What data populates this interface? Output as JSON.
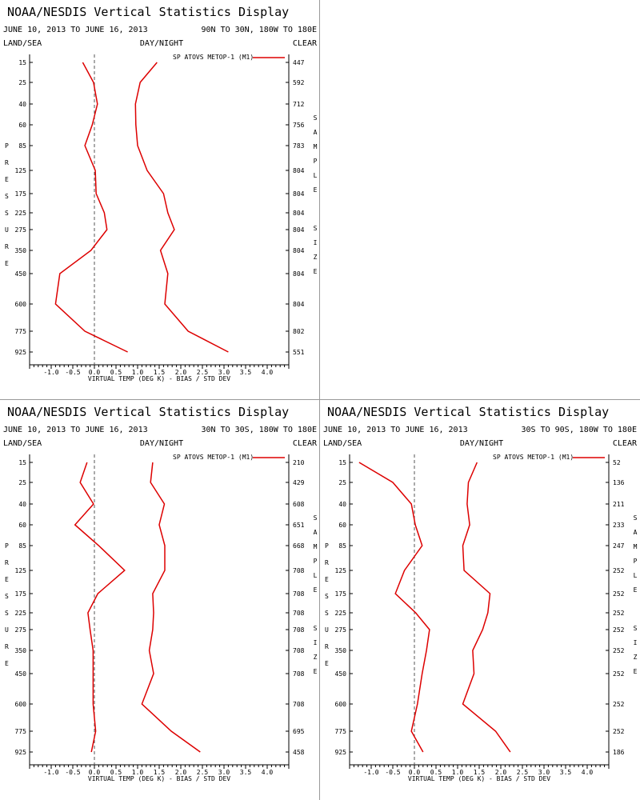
{
  "colors": {
    "series": "#dd0000",
    "zero_line": "#555555",
    "axis": "#000000",
    "divider": "#9a9a9a"
  },
  "pressure_levels": [
    15,
    25,
    40,
    60,
    85,
    125,
    175,
    225,
    275,
    350,
    450,
    600,
    775,
    925
  ],
  "x_ticks": [
    "-1.0",
    "-0.5",
    "0.0",
    "0.5",
    "1.0",
    "1.5",
    "2.0",
    "2.5",
    "3.0",
    "3.5",
    "4.0"
  ],
  "chart_data": [
    {
      "type": "line",
      "title": "NOAA/NESDIS Vertical Statistics Display",
      "date_range": "JUNE 10, 2013 TO JUNE 16, 2013",
      "region": "90N TO 30N, 180W TO 180E",
      "header_left": "LAND/SEA",
      "header_mid": "DAY/NIGHT",
      "header_right": "CLEAR",
      "left_axis_label": "PRESSURE",
      "right_axis_label": "SAMPLE SIZE",
      "xlabel": "VIRTUAL TEMP (DEG K) - BIAS / STD DEV",
      "xlim": [
        -1.5,
        4.5
      ],
      "legend": "SP ATOVS METOP-1 (M1)",
      "sample_size": [
        "447",
        "592",
        "712",
        "756",
        "783",
        "804",
        "804",
        "804",
        "804",
        "804",
        "804",
        "804",
        "802",
        "551"
      ],
      "series": [
        {
          "type": "bias",
          "values": [
            -0.27,
            -0.02,
            0.07,
            -0.05,
            -0.22,
            0.02,
            0.04,
            0.23,
            0.29,
            -0.08,
            -0.8,
            -0.9,
            -0.22,
            0.77
          ]
        },
        {
          "type": "std_dev",
          "values": [
            1.45,
            1.06,
            0.95,
            0.96,
            1.0,
            1.22,
            1.6,
            1.7,
            1.85,
            1.53,
            1.7,
            1.63,
            2.17,
            3.1
          ]
        }
      ]
    },
    {
      "type": "line",
      "title": "NOAA/NESDIS Vertical Statistics Display",
      "date_range": "JUNE 10, 2013 TO JUNE 16, 2013",
      "region": "30N TO 30S, 180W TO 180E",
      "header_left": "LAND/SEA",
      "header_mid": "DAY/NIGHT",
      "header_right": "CLEAR",
      "left_axis_label": "PRESSURE",
      "right_axis_label": "SAMPLE SIZE",
      "xlabel": "VIRTUAL TEMP (DEG K) - BIAS / STD DEV",
      "xlim": [
        -1.5,
        4.5
      ],
      "legend": "SP ATOVS METOP-1 (M1)",
      "sample_size": [
        "210",
        "429",
        "608",
        "651",
        "668",
        "708",
        "708",
        "708",
        "708",
        "708",
        "708",
        "708",
        "695",
        "458"
      ],
      "series": [
        {
          "type": "bias",
          "values": [
            -0.17,
            -0.33,
            -0.02,
            -0.45,
            0.1,
            0.7,
            0.08,
            -0.15,
            -0.1,
            -0.03,
            -0.03,
            -0.03,
            0.03,
            -0.07
          ]
        },
        {
          "type": "std_dev",
          "values": [
            1.35,
            1.3,
            1.62,
            1.5,
            1.63,
            1.63,
            1.35,
            1.37,
            1.35,
            1.27,
            1.37,
            1.1,
            1.78,
            2.45
          ]
        }
      ]
    },
    {
      "type": "line",
      "title": "NOAA/NESDIS Vertical Statistics Display",
      "date_range": "JUNE 10, 2013 TO JUNE 16, 2013",
      "region": "30S TO 90S, 180W TO 180E",
      "header_left": "LAND/SEA",
      "header_mid": "DAY/NIGHT",
      "header_right": "CLEAR",
      "left_axis_label": "PRESSURE",
      "right_axis_label": "SAMPLE SIZE",
      "xlabel": "VIRTUAL TEMP (DEG K) - BIAS / STD DEV",
      "xlim": [
        -1.5,
        4.5
      ],
      "legend": "SP ATOVS METOP-1 (M1)",
      "sample_size": [
        "52",
        "136",
        "211",
        "233",
        "247",
        "252",
        "252",
        "252",
        "252",
        "252",
        "252",
        "252",
        "252",
        "186"
      ],
      "series": [
        {
          "type": "bias",
          "values": [
            -1.28,
            -0.5,
            -0.07,
            0.02,
            0.18,
            -0.23,
            -0.44,
            0.03,
            0.35,
            0.28,
            0.18,
            0.07,
            -0.07,
            0.2
          ]
        },
        {
          "type": "std_dev",
          "values": [
            1.45,
            1.25,
            1.22,
            1.28,
            1.12,
            1.15,
            1.75,
            1.7,
            1.58,
            1.35,
            1.38,
            1.12,
            1.88,
            2.22
          ]
        }
      ]
    }
  ]
}
